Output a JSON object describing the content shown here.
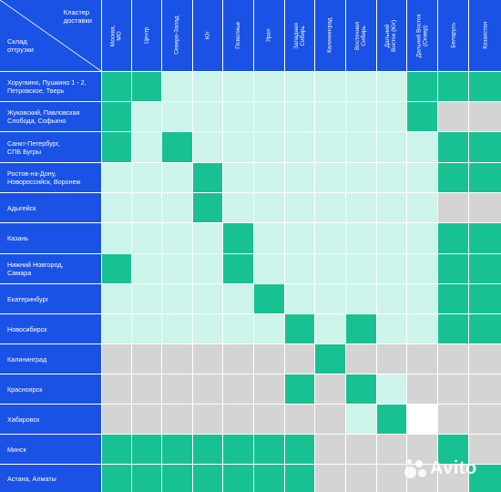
{
  "header": {
    "corner_top": "Кластер\nдоставки",
    "corner_bottom": "Склад\nотгрузки",
    "columns": [
      "Москва,\nМО",
      "Центр",
      "Северо-Запад",
      "Юг",
      "Поволжье",
      "Урал",
      "Западная\nСибирь",
      "Калининград",
      "Восточная\nСибирь",
      "Дальний\nВосток (Юг)",
      "Дальний Восток\n(Север)",
      "Беларусь",
      "Казахстан"
    ]
  },
  "rows": [
    {
      "label": "Хоругвино, Пушкино 1 - 2,\nПетровское, Тверь",
      "cells": [
        "green",
        "green",
        "light",
        "light",
        "light",
        "light",
        "light",
        "light",
        "light",
        "light",
        "green",
        "green",
        "green"
      ]
    },
    {
      "label": "Жуковский, Павловская\nСлобода, Софьино",
      "cells": [
        "green",
        "light",
        "light",
        "light",
        "light",
        "light",
        "light",
        "light",
        "light",
        "light",
        "green",
        "gray",
        "gray"
      ]
    },
    {
      "label": "Санкт-Петербург,\nСПБ Бугры",
      "cells": [
        "green",
        "light",
        "green",
        "light",
        "light",
        "light",
        "light",
        "light",
        "light",
        "light",
        "light",
        "green",
        "green"
      ]
    },
    {
      "label": "Ростов-на-Дону,\nНовороссийск, Воронеж",
      "cells": [
        "light",
        "light",
        "light",
        "green",
        "light",
        "light",
        "light",
        "light",
        "light",
        "light",
        "light",
        "green",
        "green"
      ]
    },
    {
      "label": "Адыгейск",
      "cells": [
        "light",
        "light",
        "light",
        "green",
        "light",
        "light",
        "light",
        "light",
        "light",
        "light",
        "light",
        "gray",
        "gray"
      ]
    },
    {
      "label": "Казань",
      "cells": [
        "light",
        "light",
        "light",
        "light",
        "green",
        "light",
        "light",
        "light",
        "light",
        "light",
        "light",
        "green",
        "green"
      ]
    },
    {
      "label": "Нижний Новгород,\nСамара",
      "cells": [
        "green",
        "light",
        "light",
        "light",
        "green",
        "light",
        "light",
        "light",
        "light",
        "light",
        "light",
        "green",
        "green"
      ]
    },
    {
      "label": "Екатеринбург",
      "cells": [
        "light",
        "light",
        "light",
        "light",
        "light",
        "green",
        "light",
        "light",
        "light",
        "light",
        "light",
        "green",
        "green"
      ]
    },
    {
      "label": "Новосибирск",
      "cells": [
        "light",
        "light",
        "light",
        "light",
        "light",
        "light",
        "green",
        "light",
        "green",
        "light",
        "light",
        "green",
        "green"
      ]
    },
    {
      "label": "Калининград",
      "cells": [
        "gray",
        "gray",
        "gray",
        "gray",
        "gray",
        "gray",
        "gray",
        "green",
        "gray",
        "gray",
        "gray",
        "gray",
        "gray"
      ]
    },
    {
      "label": "Красноярск",
      "cells": [
        "gray",
        "gray",
        "gray",
        "gray",
        "gray",
        "gray",
        "green",
        "gray",
        "green",
        "light",
        "gray",
        "gray",
        "gray"
      ]
    },
    {
      "label": "Хабаровск",
      "cells": [
        "gray",
        "gray",
        "gray",
        "gray",
        "gray",
        "gray",
        "gray",
        "gray",
        "light",
        "green",
        "white",
        "gray",
        "gray"
      ]
    },
    {
      "label": "Минск",
      "cells": [
        "green",
        "green",
        "green",
        "green",
        "green",
        "green",
        "green",
        "gray",
        "gray",
        "gray",
        "gray",
        "green",
        "gray"
      ]
    },
    {
      "label": "Астана, Алматы",
      "cells": [
        "green",
        "green",
        "green",
        "green",
        "green",
        "green",
        "green",
        "gray",
        "gray",
        "gray",
        "gray",
        "gray",
        "green"
      ]
    }
  ],
  "colors": {
    "header_blue": "#1a52e6",
    "green": "#18c191",
    "light": "#cdf4ea",
    "gray": "#d4d4d4"
  },
  "watermark": {
    "icon": "avito-dots-icon",
    "text": "Avito"
  }
}
